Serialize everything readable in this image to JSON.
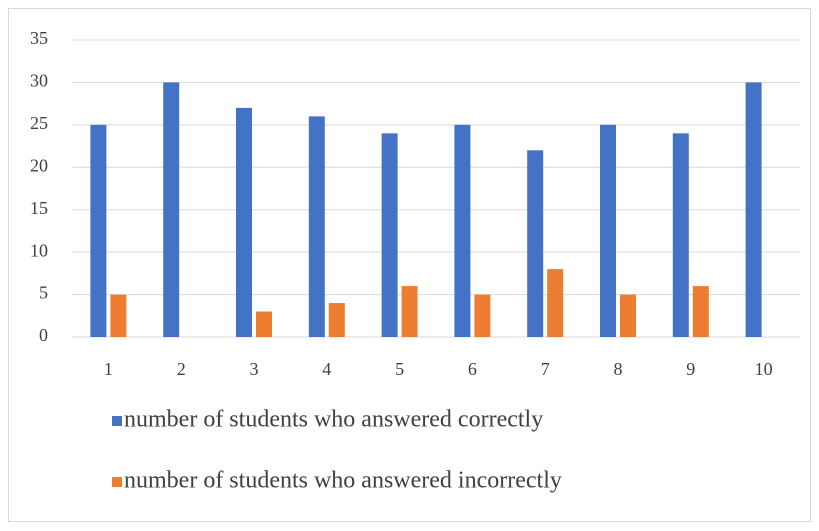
{
  "chart_data": {
    "type": "bar",
    "categories": [
      "1",
      "2",
      "3",
      "4",
      "5",
      "6",
      "7",
      "8",
      "9",
      "10"
    ],
    "series": [
      {
        "name": "number of students who answered correctly",
        "color": "#4472c4",
        "values": [
          25,
          30,
          27,
          26,
          24,
          25,
          22,
          25,
          24,
          30
        ]
      },
      {
        "name": "number of students who answered incorrectly",
        "color": "#ed7d31",
        "values": [
          5,
          0,
          3,
          4,
          6,
          5,
          8,
          5,
          6,
          0
        ]
      }
    ],
    "ylim": [
      0,
      35
    ],
    "yticks": [
      0,
      5,
      10,
      15,
      20,
      25,
      30,
      35
    ],
    "grid": true
  }
}
